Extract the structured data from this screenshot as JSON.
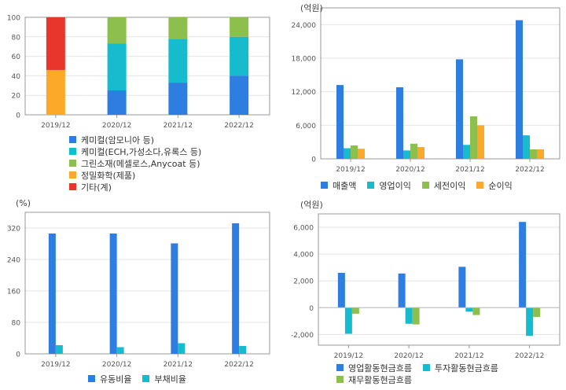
{
  "colors": {
    "blue": "#2e7de1",
    "cyan": "#16bccd",
    "green": "#8cbf4b",
    "orange": "#fca92a",
    "red": "#e8362c",
    "axis": "#999999",
    "grid": "#e4e4e4"
  },
  "chart_data": [
    {
      "id": "composition",
      "type": "bar",
      "stacked": true,
      "categories": [
        "2019/12",
        "2020/12",
        "2021/12",
        "2022/12"
      ],
      "ylim": [
        0,
        100
      ],
      "yticks": [
        0,
        20,
        40,
        60,
        80,
        100
      ],
      "grid": true,
      "legend_position": "bottom",
      "series": [
        {
          "name": "케미컬(암모니아 등)",
          "color": "#2e7de1",
          "values": [
            0,
            25,
            33,
            40
          ]
        },
        {
          "name": "케미컬(ECH,가성소다,유록스 등)",
          "color": "#16bccd",
          "values": [
            0,
            48,
            45,
            40
          ]
        },
        {
          "name": "그린소재(메셀로스,Anycoat 등)",
          "color": "#8cbf4b",
          "values": [
            0,
            27,
            22,
            20
          ]
        },
        {
          "name": "정밀화학(제품)",
          "color": "#fca92a",
          "values": [
            46,
            0,
            0,
            0
          ]
        },
        {
          "name": "기타(계)",
          "color": "#e8362c",
          "values": [
            54,
            0,
            0,
            0
          ]
        }
      ]
    },
    {
      "id": "income",
      "type": "bar",
      "unit": "(억원)",
      "categories": [
        "2019/12",
        "2020/12",
        "2021/12",
        "2022/12"
      ],
      "ylim": [
        0,
        27000
      ],
      "yticks": [
        0,
        6000,
        12000,
        18000,
        24000
      ],
      "ytick_labels": [
        "0",
        "6,000",
        "12,000",
        "18,000",
        "24,000"
      ],
      "grid": true,
      "legend_position": "bottom",
      "series": [
        {
          "name": "매출액",
          "color": "#2e7de1",
          "values": [
            13200,
            12800,
            17800,
            24800
          ]
        },
        {
          "name": "영업이익",
          "color": "#16bccd",
          "values": [
            1900,
            1500,
            2500,
            4200
          ]
        },
        {
          "name": "세전이익",
          "color": "#8cbf4b",
          "values": [
            2400,
            2700,
            7600,
            1700
          ]
        },
        {
          "name": "순이익",
          "color": "#fca92a",
          "values": [
            1800,
            2100,
            6000,
            1700
          ]
        }
      ]
    },
    {
      "id": "ratios",
      "type": "bar",
      "unit": "(%)",
      "categories": [
        "2019/12",
        "2020/12",
        "2021/12",
        "2022/12"
      ],
      "ylim": [
        0,
        360
      ],
      "yticks": [
        0,
        80,
        160,
        240,
        320
      ],
      "grid": true,
      "legend_position": "bottom",
      "series": [
        {
          "name": "유동비율",
          "color": "#2e7de1",
          "values": [
            306,
            306,
            281,
            332
          ]
        },
        {
          "name": "부채비율",
          "color": "#16bccd",
          "values": [
            22,
            17,
            27,
            20
          ]
        }
      ]
    },
    {
      "id": "cashflow",
      "type": "bar",
      "unit": "(억원)",
      "categories": [
        "2019/12",
        "2020/12",
        "2021/12",
        "2022/12"
      ],
      "ylim": [
        -2800,
        7000
      ],
      "yticks": [
        -2000,
        0,
        2000,
        4000,
        6000
      ],
      "ytick_labels": [
        "-2,000",
        "0",
        "2,000",
        "4,000",
        "6,000"
      ],
      "grid": true,
      "legend_position": "bottom",
      "series": [
        {
          "name": "영업활동현금흐름",
          "color": "#2e7de1",
          "values": [
            2600,
            2550,
            3050,
            6400
          ]
        },
        {
          "name": "투자활동현금흐름",
          "color": "#16bccd",
          "values": [
            -1950,
            -1200,
            -300,
            -2100
          ]
        },
        {
          "name": "재무활동현금흐름",
          "color": "#8cbf4b",
          "values": [
            -450,
            -1250,
            -550,
            -700
          ]
        }
      ]
    }
  ]
}
